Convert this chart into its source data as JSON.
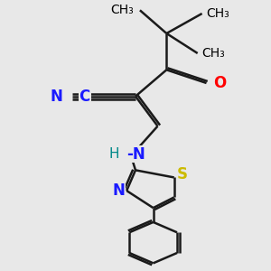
{
  "bg_color": "#e8e8e8",
  "bond_color": "#1a1a1a",
  "bond_width": 1.8,
  "atom_colors": {
    "N": "#1a1aff",
    "O": "#ff0000",
    "S": "#ccbb00",
    "H": "#008888",
    "C": "#000000"
  },
  "font_size": 11,
  "fig_size": [
    3.0,
    3.0
  ],
  "dpi": 100,
  "xlim": [
    -2.5,
    3.5
  ],
  "ylim": [
    -4.5,
    3.5
  ]
}
